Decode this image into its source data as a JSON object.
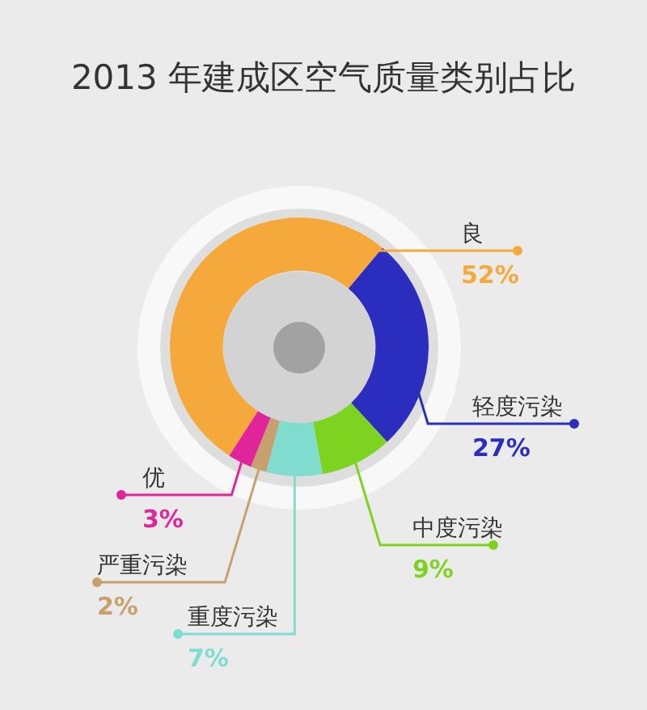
{
  "chart_data": {
    "type": "donut",
    "title": "2013 年建成区空气质量类别占比",
    "categories": [
      "轻度污染",
      "中度污染",
      "重度污染",
      "严重污染",
      "优",
      "良"
    ],
    "values": [
      27,
      9,
      7,
      2,
      3,
      52
    ],
    "colors": [
      "#2a2dbd",
      "#7ed321",
      "#80dccf",
      "#c8a06e",
      "#e0259a",
      "#f5a93a"
    ],
    "value_labels": [
      "27%",
      "9%",
      "7%",
      "2%",
      "3%",
      "52%"
    ]
  }
}
